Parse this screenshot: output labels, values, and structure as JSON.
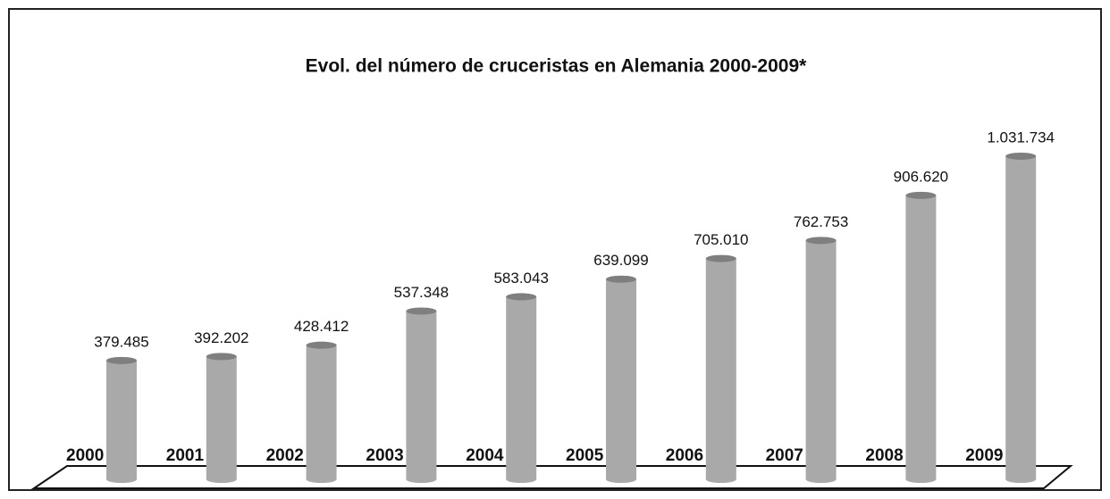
{
  "chart_data": {
    "type": "bar",
    "title": "Evol. del número de cruceristas en Alemania 2000-2009*",
    "categories": [
      "2000",
      "2001",
      "2002",
      "2003",
      "2004",
      "2005",
      "2006",
      "2007",
      "2008",
      "2009"
    ],
    "values": [
      379485,
      392202,
      428412,
      537348,
      583043,
      639099,
      705010,
      762753,
      906620,
      1031734
    ],
    "value_labels": [
      "379.485",
      "392.202",
      "428.412",
      "537.348",
      "583.043",
      "639.099",
      "705.010",
      "762.753",
      "906.620",
      "1.031.734"
    ],
    "color": "#a9a9a9",
    "ylim": [
      0,
      1100000
    ]
  }
}
